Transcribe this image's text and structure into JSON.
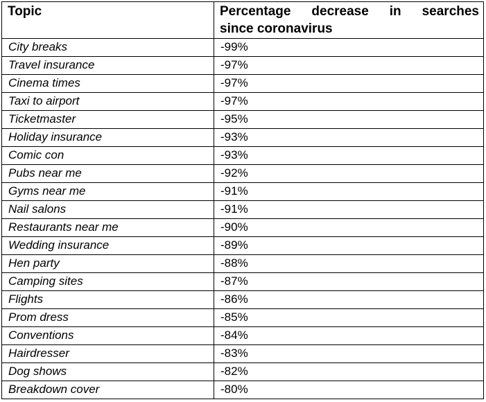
{
  "table": {
    "headers": {
      "topic": "Topic",
      "pct_line1": "Percentage decrease in searches",
      "pct_line2": "since coronavirus"
    },
    "rows": [
      {
        "topic": "City breaks",
        "pct": "-99%"
      },
      {
        "topic": "Travel insurance",
        "pct": "-97%"
      },
      {
        "topic": "Cinema times",
        "pct": "-97%"
      },
      {
        "topic": "Taxi to airport",
        "pct": "-97%"
      },
      {
        "topic": "Ticketmaster",
        "pct": "-95%"
      },
      {
        "topic": "Holiday insurance",
        "pct": "-93%"
      },
      {
        "topic": "Comic con",
        "pct": "-93%"
      },
      {
        "topic": "Pubs near me",
        "pct": "-92%"
      },
      {
        "topic": "Gyms near me",
        "pct": "-91%"
      },
      {
        "topic": "Nail salons",
        "pct": "-91%"
      },
      {
        "topic": "Restaurants near me",
        "pct": "-90%"
      },
      {
        "topic": "Wedding insurance",
        "pct": "-89%"
      },
      {
        "topic": "Hen party",
        "pct": "-88%"
      },
      {
        "topic": "Camping sites",
        "pct": "-87%"
      },
      {
        "topic": "Flights",
        "pct": "-86%"
      },
      {
        "topic": "Prom dress",
        "pct": "-85%"
      },
      {
        "topic": "Conventions",
        "pct": "-84%"
      },
      {
        "topic": "Hairdresser",
        "pct": "-83%"
      },
      {
        "topic": "Dog shows",
        "pct": "-82%"
      },
      {
        "topic": "Breakdown cover",
        "pct": "-80%"
      }
    ]
  }
}
